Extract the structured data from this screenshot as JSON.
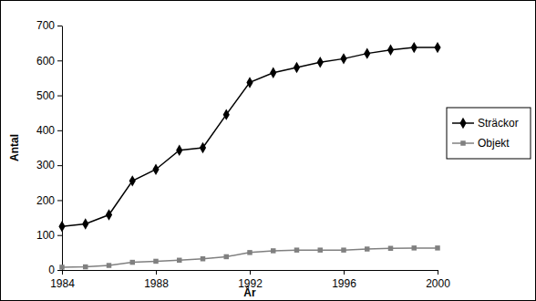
{
  "chart_data": {
    "type": "line",
    "x_label": "År",
    "y_label": "Antal",
    "x": [
      1984,
      1985,
      1986,
      1987,
      1988,
      1989,
      1990,
      1991,
      1992,
      1993,
      1994,
      1995,
      1996,
      1997,
      1998,
      1999,
      2000
    ],
    "series": [
      {
        "name": "Sträckor",
        "color": "#000000",
        "marker": "diamond",
        "line_style": "solid",
        "values": [
          125,
          132,
          158,
          255,
          288,
          343,
          350,
          445,
          537,
          565,
          580,
          595,
          605,
          620,
          630,
          637,
          637
        ]
      },
      {
        "name": "Objekt",
        "color": "#808080",
        "marker": "square",
        "line_style": "solid",
        "values": [
          8,
          9,
          13,
          22,
          25,
          28,
          32,
          38,
          50,
          55,
          57,
          57,
          57,
          60,
          62,
          63,
          63
        ]
      }
    ],
    "xlim": [
      1984,
      2000
    ],
    "xticks": [
      1984,
      1988,
      1992,
      1996,
      2000
    ],
    "ylim": [
      0,
      700
    ],
    "yticks": [
      0,
      100,
      200,
      300,
      400,
      500,
      600,
      700
    ],
    "grid": false,
    "legend": "right"
  }
}
